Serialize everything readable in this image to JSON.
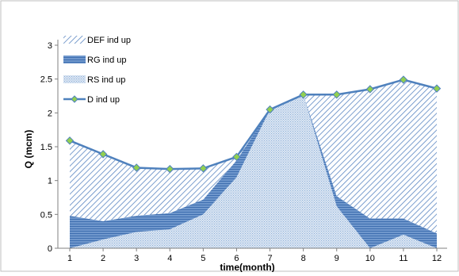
{
  "chart_data": {
    "type": "area",
    "xlabel": "time(month)",
    "ylabel": "Q (mcm)",
    "x": [
      1,
      2,
      3,
      4,
      5,
      6,
      7,
      8,
      9,
      10,
      11,
      12
    ],
    "ylim": [
      0,
      3
    ],
    "yticks": [
      "0",
      "0.5",
      "1",
      "1.5",
      "2",
      "2.5",
      "3"
    ],
    "xticks": [
      "1",
      "2",
      "3",
      "4",
      "5",
      "6",
      "7",
      "8",
      "9",
      "10",
      "11",
      "12"
    ],
    "legend_position": "top-left",
    "grid": false,
    "series": [
      {
        "name": "RS ind up",
        "kind": "area",
        "color": "#a9c4e3",
        "values": [
          0.0,
          0.13,
          0.24,
          0.28,
          0.5,
          1.05,
          2.05,
          2.27,
          0.62,
          0.0,
          0.2,
          0.0
        ]
      },
      {
        "name": "RG ind up",
        "kind": "area",
        "color": "#4a7ebf",
        "values": [
          0.48,
          0.27,
          0.24,
          0.24,
          0.22,
          0.25,
          0.0,
          0.0,
          0.15,
          0.44,
          0.24,
          0.22
        ]
      },
      {
        "name": "DEF ind up",
        "kind": "area",
        "color": "#5b86c2",
        "values": [
          1.11,
          0.99,
          0.71,
          0.65,
          0.46,
          0.05,
          0.0,
          0.0,
          1.5,
          1.91,
          2.05,
          2.14
        ]
      },
      {
        "name": "D ind up",
        "kind": "line",
        "color": "#4f81bd",
        "marker_color": "#92d050",
        "values": [
          1.59,
          1.39,
          1.19,
          1.17,
          1.18,
          1.35,
          2.05,
          2.27,
          2.27,
          2.35,
          2.49,
          2.36
        ]
      }
    ]
  }
}
